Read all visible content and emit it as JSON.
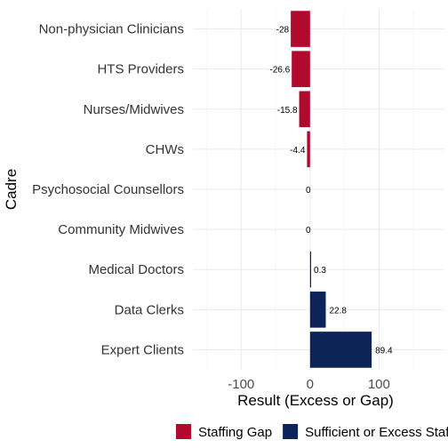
{
  "chart_data": {
    "type": "bar",
    "orientation": "horizontal",
    "categories": [
      "Non-physician Clinicians",
      "HTS Providers",
      "Nurses/Midwives",
      "CHWs",
      "Psychosocial Counsellors",
      "Community Midwives",
      "Medical Doctors",
      "Data Clerks",
      "Expert Clients"
    ],
    "values": [
      -28,
      -26.6,
      -15.8,
      -4.4,
      0,
      0,
      0.3,
      22.8,
      89.4
    ],
    "value_labels": [
      "-28",
      "-26.6",
      "-15.8",
      "-4.4",
      "0",
      "0",
      "0.3",
      "22.8",
      "89.4"
    ],
    "xlabel": "Result (Excess or Gap)",
    "ylabel": "Cadre",
    "xlim": [
      -170,
      195
    ],
    "x_ticks": [
      -100,
      0,
      100
    ],
    "x_tick_labels": [
      "-100",
      "0",
      "100"
    ],
    "grid": true,
    "legend": {
      "position": "bottom",
      "items": [
        {
          "label": "Staffing Gap",
          "color": "#b2092f"
        },
        {
          "label": "Sufficient or Excess Staff",
          "color": "#0c2458"
        }
      ]
    },
    "colors": {
      "gap": "#b2092f",
      "sufficient": "#0c2458"
    }
  }
}
